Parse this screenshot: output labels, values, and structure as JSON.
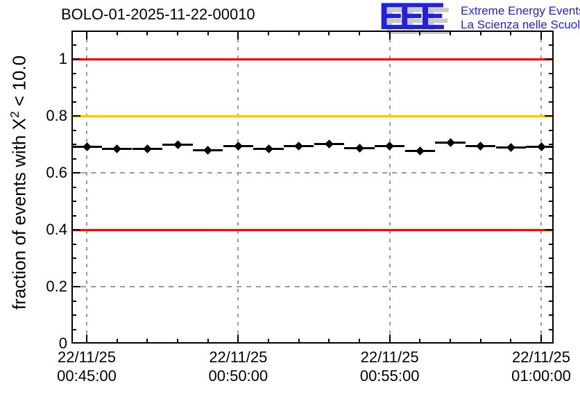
{
  "header": {
    "title": "BOLO-01-2025-11-22-00010",
    "logo": {
      "letters": "EEE",
      "tagline_line1": "Extreme Energy Events",
      "tagline_line2": "La Scienza nelle Scuole",
      "blue": "#2222dd",
      "shadow_gray": "#c9c9c9"
    }
  },
  "chart_data": {
    "type": "scatter",
    "title": "BOLO-01-2025-11-22-00010",
    "ylabel_pre": "fraction of events with X",
    "ylabel_sup": "2",
    "ylabel_post": " < 10.0",
    "ylim": [
      0,
      1.1
    ],
    "y_ticks": [
      0,
      0.2,
      0.4,
      0.6,
      0.8,
      1
    ],
    "y_tick_labels": [
      "0",
      "0.2",
      "0.4",
      "0.6",
      "0.8",
      "1"
    ],
    "y_minor_step": 0.05,
    "x_axis_labels": [
      {
        "date": "22/11/25",
        "time": "00:45:00",
        "t_min": 0
      },
      {
        "date": "22/11/25",
        "time": "00:50:00",
        "t_min": 5
      },
      {
        "date": "22/11/25",
        "time": "00:55:00",
        "t_min": 10
      },
      {
        "date": "22/11/25",
        "time": "01:00:00",
        "t_min": 15
      }
    ],
    "x_minor_every_minutes": 1,
    "grid": {
      "show": true,
      "color": "#9a9a9a",
      "style": "dashed"
    },
    "reference_lines": [
      {
        "y": 1.0,
        "color": "#ff0000"
      },
      {
        "y": 0.8,
        "color": "#ffc800"
      },
      {
        "y": 0.4,
        "color": "#ff0000"
      }
    ],
    "series": [
      {
        "marker": "diamond",
        "color": "#000000",
        "x_error_minutes": 0.5,
        "points": [
          {
            "time": "00:45:00",
            "t_min": 0,
            "value": 0.691
          },
          {
            "time": "00:46:00",
            "t_min": 1,
            "value": 0.685
          },
          {
            "time": "00:47:00",
            "t_min": 2,
            "value": 0.683
          },
          {
            "time": "00:48:00",
            "t_min": 3,
            "value": 0.699
          },
          {
            "time": "00:49:00",
            "t_min": 4,
            "value": 0.68
          },
          {
            "time": "00:50:00",
            "t_min": 5,
            "value": 0.693
          },
          {
            "time": "00:51:00",
            "t_min": 6,
            "value": 0.685
          },
          {
            "time": "00:52:00",
            "t_min": 7,
            "value": 0.695
          },
          {
            "time": "00:53:00",
            "t_min": 8,
            "value": 0.702
          },
          {
            "time": "00:54:00",
            "t_min": 9,
            "value": 0.687
          },
          {
            "time": "00:55:00",
            "t_min": 10,
            "value": 0.693
          },
          {
            "time": "00:56:00",
            "t_min": 11,
            "value": 0.676
          },
          {
            "time": "00:57:00",
            "t_min": 12,
            "value": 0.706
          },
          {
            "time": "00:58:00",
            "t_min": 13,
            "value": 0.695
          },
          {
            "time": "00:59:00",
            "t_min": 14,
            "value": 0.689
          },
          {
            "time": "01:00:00",
            "t_min": 15,
            "value": 0.691
          }
        ]
      }
    ]
  }
}
